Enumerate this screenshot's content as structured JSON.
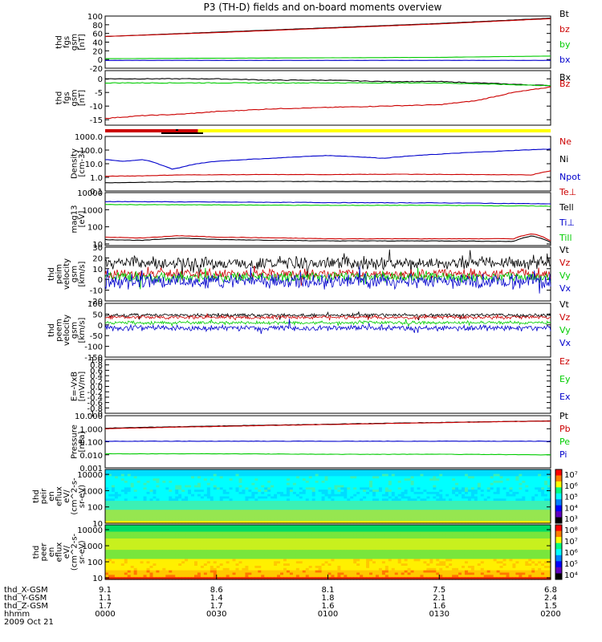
{
  "title": "P3 (TH-D) fields and on-board moments overview",
  "colors": {
    "black": "#000000",
    "red": "#cc0000",
    "green": "#00cc00",
    "blue": "#0000cc",
    "yellow": "#ffff00"
  },
  "chart_data": [
    {
      "type": "line",
      "ylabel": [
        "thd",
        "fgs",
        "gsm",
        "[nT]"
      ],
      "ylim": [
        -20,
        100
      ],
      "yticks": [
        100,
        80,
        60,
        40,
        20,
        0,
        -20
      ],
      "legend": [
        {
          "text": "Bt",
          "color": "black"
        },
        {
          "text": "bz",
          "color": "red"
        },
        {
          "text": "by",
          "color": "green"
        },
        {
          "text": "bx",
          "color": "blue"
        }
      ],
      "series": [
        {
          "name": "Bt",
          "color": "black",
          "x": [
            0,
            30,
            60,
            90,
            120
          ],
          "y": [
            53,
            63,
            73,
            83,
            95
          ]
        },
        {
          "name": "bz",
          "color": "red",
          "x": [
            0,
            30,
            60,
            90,
            120
          ],
          "y": [
            53,
            62,
            72,
            82,
            94
          ]
        },
        {
          "name": "by",
          "color": "green",
          "x": [
            0,
            30,
            60,
            90,
            120
          ],
          "y": [
            2,
            3,
            4,
            5,
            8
          ]
        },
        {
          "name": "bx",
          "color": "blue",
          "x": [
            0,
            30,
            60,
            90,
            120
          ],
          "y": [
            -2,
            -2,
            -2,
            -2,
            -2
          ]
        }
      ]
    },
    {
      "type": "line",
      "ylabel": [
        "thd",
        "fgs",
        "gsm",
        "[nT]"
      ],
      "ylim": [
        -17,
        3
      ],
      "yticks": [
        0,
        -5,
        -10,
        -15
      ],
      "legend": [
        {
          "text": "Bx",
          "color": "black"
        },
        {
          "text": "Bz",
          "color": "red"
        }
      ],
      "series": [
        {
          "name": "Bx",
          "color": "black",
          "x": [
            0,
            10,
            20,
            30,
            45,
            60,
            75,
            90,
            100,
            110,
            120
          ],
          "y": [
            0,
            0,
            0,
            0,
            -0.5,
            -0.5,
            -1,
            -1,
            -1.5,
            -2,
            -2.5
          ]
        },
        {
          "name": "Bz",
          "color": "red",
          "x": [
            0,
            10,
            20,
            30,
            45,
            60,
            75,
            90,
            100,
            110,
            120
          ],
          "y": [
            -14.5,
            -13.5,
            -13,
            -12,
            -11,
            -10.5,
            -10,
            -9.5,
            -8,
            -5,
            -3
          ]
        },
        {
          "name": "",
          "color": "green",
          "x": [
            0,
            30,
            60,
            90,
            120
          ],
          "y": [
            -1.5,
            -1.5,
            -1.5,
            -1.5,
            -2.5
          ]
        }
      ]
    },
    {
      "type": "bar",
      "segments": [
        {
          "x0": 0,
          "x1": 25,
          "color": "red"
        },
        {
          "x0": 25,
          "x1": 120,
          "color": "yellow"
        }
      ]
    },
    {
      "type": "line",
      "log": true,
      "ylabel": [
        "Density",
        "[cm-3]"
      ],
      "ylim": [
        0.1,
        1000
      ],
      "yticks": [
        "1000.0",
        "100.0",
        "10.0",
        "1.0",
        "0.1"
      ],
      "legend": [
        {
          "text": "Ne",
          "color": "red"
        },
        {
          "text": "Ni",
          "color": "black"
        },
        {
          "text": "Npot",
          "color": "blue"
        }
      ],
      "series": [
        {
          "name": "Npot",
          "color": "blue",
          "x": [
            0,
            5,
            10,
            15,
            18,
            20,
            25,
            30,
            45,
            60,
            75,
            90,
            105,
            120
          ],
          "y": [
            20,
            15,
            20,
            8,
            4,
            5,
            10,
            15,
            25,
            40,
            25,
            50,
            80,
            120
          ]
        },
        {
          "name": "Ne",
          "color": "red",
          "x": [
            0,
            10,
            20,
            40,
            60,
            80,
            100,
            115,
            120
          ],
          "y": [
            1.2,
            1.3,
            1.5,
            1.6,
            1.6,
            1.7,
            1.6,
            1.5,
            3
          ]
        },
        {
          "name": "Ni",
          "color": "black",
          "x": [
            0,
            30,
            60,
            90,
            120
          ],
          "y": [
            0.4,
            0.5,
            0.5,
            0.5,
            0.5
          ]
        }
      ]
    },
    {
      "type": "line",
      "log": true,
      "ylabel": [
        "mag13",
        "[eV]"
      ],
      "ylim": [
        8,
        10000
      ],
      "yticks": [
        "10000",
        "1000",
        "100",
        "10"
      ],
      "legend": [
        {
          "text": "Te⊥",
          "color": "red"
        },
        {
          "text": "Tell",
          "color": "black"
        },
        {
          "text": "Ti⊥",
          "color": "blue"
        },
        {
          "text": "Till",
          "color": "green"
        }
      ],
      "series": [
        {
          "name": "Ti⊥",
          "color": "blue",
          "x": [
            0,
            30,
            60,
            90,
            120
          ],
          "y": [
            3000,
            2800,
            2600,
            2500,
            2200
          ]
        },
        {
          "name": "Till",
          "color": "green",
          "x": [
            0,
            30,
            60,
            90,
            120
          ],
          "y": [
            2000,
            1900,
            1800,
            1800,
            1600
          ]
        },
        {
          "name": "Te⊥",
          "color": "red",
          "x": [
            0,
            10,
            20,
            30,
            60,
            90,
            110,
            115,
            120
          ],
          "y": [
            25,
            22,
            30,
            25,
            20,
            20,
            20,
            40,
            15
          ]
        },
        {
          "name": "Tell",
          "color": "black",
          "x": [
            0,
            10,
            20,
            30,
            60,
            90,
            110,
            115,
            120
          ],
          "y": [
            18,
            16,
            22,
            18,
            15,
            15,
            14,
            30,
            12
          ]
        }
      ]
    },
    {
      "type": "line",
      "ylabel": [
        "thd",
        "peim",
        "velocity",
        "gsm",
        "[km/s]"
      ],
      "ylim": [
        -20,
        30
      ],
      "yticks": [
        30,
        20,
        10,
        0,
        -10,
        -20
      ],
      "legend": [
        {
          "text": "Vt",
          "color": "black"
        },
        {
          "text": "Vz",
          "color": "red"
        },
        {
          "text": "Vy",
          "color": "green"
        },
        {
          "text": "Vx",
          "color": "blue"
        }
      ],
      "series": [
        {
          "name": "Vt",
          "color": "black",
          "x": [
            0,
            30,
            60,
            90,
            120
          ],
          "y": [
            15,
            15,
            15,
            15,
            15
          ]
        },
        {
          "name": "Vz",
          "color": "red",
          "x": [
            0,
            30,
            60,
            90,
            120
          ],
          "y": [
            5,
            5,
            5,
            5,
            5
          ]
        },
        {
          "name": "Vy",
          "color": "green",
          "x": [
            0,
            30,
            60,
            90,
            120
          ],
          "y": [
            2,
            2,
            2,
            2,
            2
          ]
        },
        {
          "name": "Vx",
          "color": "blue",
          "x": [
            0,
            30,
            60,
            90,
            120
          ],
          "y": [
            -2,
            -2,
            -2,
            -2,
            -2
          ]
        }
      ]
    },
    {
      "type": "line",
      "ylabel": [
        "thd",
        "peem",
        "velocity",
        "gsm",
        "[km/s]"
      ],
      "ylim": [
        -150,
        100
      ],
      "yticks": [
        100,
        50,
        0,
        -50,
        -100,
        -150
      ],
      "legend": [
        {
          "text": "Vt",
          "color": "black"
        },
        {
          "text": "Vz",
          "color": "red"
        },
        {
          "text": "Vy",
          "color": "green"
        },
        {
          "text": "Vx",
          "color": "blue"
        }
      ],
      "series": [
        {
          "name": "Vt",
          "color": "black",
          "x": [
            0,
            30,
            60,
            90,
            120
          ],
          "y": [
            45,
            45,
            45,
            45,
            45
          ]
        },
        {
          "name": "Vz",
          "color": "red",
          "x": [
            0,
            30,
            60,
            90,
            120
          ],
          "y": [
            35,
            35,
            35,
            35,
            35
          ]
        },
        {
          "name": "Vy",
          "color": "green",
          "x": [
            0,
            30,
            60,
            90,
            120
          ],
          "y": [
            10,
            10,
            10,
            10,
            10
          ]
        },
        {
          "name": "Vx",
          "color": "blue",
          "x": [
            0,
            30,
            60,
            90,
            120
          ],
          "y": [
            -15,
            -15,
            -15,
            -15,
            -15
          ]
        }
      ]
    },
    {
      "type": "line",
      "ylabel": [
        "E=-VxB",
        "[mV/m]"
      ],
      "ylim": [
        -1,
        1
      ],
      "yticks": [
        "1.0",
        "0.8",
        "0.6",
        "0.4",
        "0.2",
        "0.0",
        "-0.2",
        "-0.4",
        "-0.6",
        "-0.8",
        "-1.0"
      ],
      "legend": [
        {
          "text": "Ez",
          "color": "red"
        },
        {
          "text": "Ey",
          "color": "green"
        },
        {
          "text": "Ex",
          "color": "blue"
        }
      ],
      "series": []
    },
    {
      "type": "line",
      "log": true,
      "ylabel": [
        "Pressure",
        "[nPa]"
      ],
      "ylim": [
        0.001,
        10
      ],
      "yticks": [
        "10.000",
        "1.000",
        "0.100",
        "0.010",
        "0.001"
      ],
      "legend": [
        {
          "text": "Pt",
          "color": "black"
        },
        {
          "text": "Pb",
          "color": "red"
        },
        {
          "text": "Pe",
          "color": "green"
        },
        {
          "text": "Pi",
          "color": "blue"
        }
      ],
      "series": [
        {
          "name": "Pt",
          "color": "black",
          "x": [
            0,
            30,
            60,
            90,
            120
          ],
          "y": [
            1.1,
            1.6,
            2.2,
            3.0,
            4.0
          ]
        },
        {
          "name": "Pb",
          "color": "red",
          "x": [
            0,
            30,
            60,
            90,
            120
          ],
          "y": [
            1.0,
            1.5,
            2.1,
            2.9,
            3.9
          ]
        },
        {
          "name": "Pi",
          "color": "blue",
          "x": [
            0,
            30,
            60,
            90,
            120
          ],
          "y": [
            0.11,
            0.11,
            0.11,
            0.11,
            0.11
          ]
        },
        {
          "name": "Pe",
          "color": "green",
          "x": [
            0,
            30,
            60,
            90,
            120
          ],
          "y": [
            0.012,
            0.012,
            0.011,
            0.011,
            0.01
          ]
        }
      ]
    },
    {
      "type": "heatmap",
      "log": true,
      "ylabel": [
        "thd",
        "peir",
        "en",
        "eflux",
        "eV/",
        "(cm^2-s-",
        "sr-eV)"
      ],
      "ylim": [
        10,
        20000
      ],
      "yticks": [
        "10000",
        "1000",
        "100",
        "10"
      ],
      "colorbar": {
        "min_exp": 3,
        "max_exp": 7,
        "ticks": [
          "10⁷",
          "10⁶",
          "10⁵",
          "10⁴",
          "10³"
        ]
      }
    },
    {
      "type": "heatmap",
      "log": true,
      "ylabel": [
        "thd",
        "peer",
        "en",
        "eflux",
        "eV/",
        "(cm^2-s-",
        "sr-eV)"
      ],
      "ylim": [
        8,
        20000
      ],
      "yticks": [
        "10000",
        "1000",
        "100",
        "10"
      ],
      "colorbar": {
        "min_exp": 4,
        "max_exp": 8,
        "ticks": [
          "10⁸",
          "10⁷",
          "10⁶",
          "10⁵",
          "10⁴"
        ]
      }
    }
  ],
  "xaxis": {
    "rows": [
      {
        "label": "thd_X-GSM",
        "values": [
          "9.1",
          "8.6",
          "8.1",
          "7.5",
          "6.8"
        ]
      },
      {
        "label": "thd_Y-GSM",
        "values": [
          "1.1",
          "1.4",
          "1.8",
          "2.1",
          "2.4"
        ]
      },
      {
        "label": "thd_Z-GSM",
        "values": [
          "1.7",
          "1.7",
          "1.6",
          "1.6",
          "1.5"
        ]
      },
      {
        "label": "hhmm",
        "values": [
          "0000",
          "0030",
          "0100",
          "0130",
          "0200"
        ]
      }
    ],
    "date": "2009 Oct 21"
  }
}
